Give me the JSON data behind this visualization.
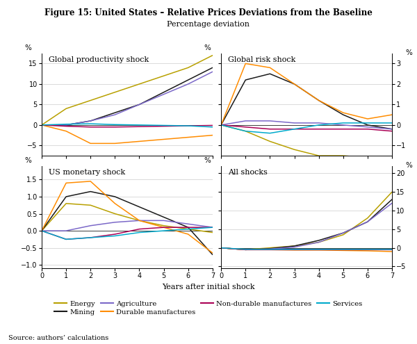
{
  "title": "Figure 15: United States – Relative Prices Deviations from the Baseline",
  "subtitle": "Percentage deviation",
  "source": "Source: authors’ calculations",
  "x": [
    0,
    1,
    2,
    3,
    4,
    5,
    6,
    7
  ],
  "panels": [
    {
      "label": "Global productivity shock",
      "ylim": [
        -7.5,
        17.5
      ],
      "yticks": [
        -5,
        0,
        5,
        10,
        15
      ],
      "ylim_right": null,
      "yticks_right": null,
      "series": {
        "Energy": [
          0,
          4,
          6,
          8,
          10,
          12,
          14,
          17
        ],
        "Mining": [
          0,
          0,
          1,
          3,
          5,
          8,
          11,
          14
        ],
        "Agriculture": [
          0,
          0,
          1,
          2.5,
          5,
          7.5,
          10,
          13
        ],
        "Durable manufactures": [
          0,
          -1.5,
          -4.5,
          -4.5,
          -4,
          -3.5,
          -3,
          -2.5
        ],
        "Non-durable manufactures": [
          0,
          -0.3,
          -0.5,
          -0.5,
          -0.4,
          -0.3,
          -0.2,
          -0.1
        ],
        "Services": [
          0,
          0.2,
          0.3,
          0.1,
          0,
          -0.1,
          -0.2,
          -0.5
        ]
      }
    },
    {
      "label": "Global risk shock",
      "ylim": [
        -1.5,
        3.5
      ],
      "yticks": [
        -1,
        0,
        1,
        2,
        3
      ],
      "ylim_right": [
        -1.5,
        3.5
      ],
      "yticks_right": [
        -1,
        0,
        1,
        2,
        3
      ],
      "series": {
        "Energy": [
          0,
          -0.3,
          -0.8,
          -1.2,
          -1.5,
          -1.5,
          -1.6,
          -1.7
        ],
        "Mining": [
          0,
          2.2,
          2.5,
          2.0,
          1.2,
          0.5,
          0,
          -0.2
        ],
        "Agriculture": [
          0,
          0.2,
          0.2,
          0.1,
          0.1,
          0,
          -0.1,
          -0.2
        ],
        "Durable manufactures": [
          0,
          3.0,
          2.8,
          2.0,
          1.2,
          0.6,
          0.3,
          0.5
        ],
        "Non-durable manufactures": [
          0,
          -0.1,
          -0.2,
          -0.2,
          -0.2,
          -0.2,
          -0.2,
          -0.3
        ],
        "Services": [
          0,
          -0.3,
          -0.4,
          -0.2,
          0,
          0.1,
          0.1,
          0.1
        ]
      }
    },
    {
      "label": "US monetary shock",
      "ylim": [
        -1.1,
        1.9
      ],
      "yticks": [
        -1.0,
        -0.5,
        0.0,
        0.5,
        1.0,
        1.5
      ],
      "ylim_right": null,
      "yticks_right": null,
      "series": {
        "Energy": [
          0,
          0.8,
          0.75,
          0.5,
          0.3,
          0.15,
          0.05,
          -0.05
        ],
        "Mining": [
          0,
          1.0,
          1.15,
          1.0,
          0.7,
          0.4,
          0.1,
          -0.7
        ],
        "Agriculture": [
          0,
          0.0,
          0.15,
          0.25,
          0.3,
          0.3,
          0.2,
          0.1
        ],
        "Durable manufactures": [
          0,
          1.4,
          1.45,
          0.8,
          0.3,
          0.1,
          -0.1,
          -0.65
        ],
        "Non-durable manufactures": [
          0,
          -0.25,
          -0.2,
          -0.1,
          0.05,
          0.1,
          0.1,
          0.1
        ],
        "Services": [
          0,
          -0.25,
          -0.2,
          -0.15,
          -0.05,
          0,
          0.05,
          0.1
        ]
      }
    },
    {
      "label": "All shocks",
      "ylim": [
        -5.5,
        22
      ],
      "yticks": [
        -5,
        0,
        5,
        10,
        15,
        20
      ],
      "ylim_right": [
        -5.5,
        22
      ],
      "yticks_right": [
        -5,
        0,
        5,
        10,
        15,
        20
      ],
      "series": {
        "Energy": [
          0,
          -0.5,
          0,
          0.5,
          1.5,
          3.5,
          8,
          15
        ],
        "Mining": [
          0,
          -0.5,
          -0.2,
          0.5,
          2,
          4,
          7,
          13
        ],
        "Agriculture": [
          0,
          -0.5,
          -0.3,
          0.2,
          1.5,
          4,
          7,
          12
        ],
        "Durable manufactures": [
          0,
          -0.5,
          -0.5,
          -0.6,
          -0.6,
          -0.7,
          -0.8,
          -1.0
        ],
        "Non-durable manufactures": [
          0,
          -0.5,
          -0.5,
          -0.5,
          -0.5,
          -0.5,
          -0.5,
          -0.5
        ],
        "Services": [
          0,
          -0.4,
          -0.4,
          -0.4,
          -0.4,
          -0.4,
          -0.4,
          -0.4
        ]
      }
    }
  ],
  "colors": {
    "Energy": "#b8a000",
    "Mining": "#1a1a1a",
    "Agriculture": "#7b68c8",
    "Durable manufactures": "#ff8c00",
    "Non-durable manufactures": "#aa0055",
    "Services": "#00aacc"
  },
  "legend_order": [
    "Energy",
    "Mining",
    "Agriculture",
    "Durable manufactures",
    "Non-durable manufactures",
    "Services"
  ]
}
